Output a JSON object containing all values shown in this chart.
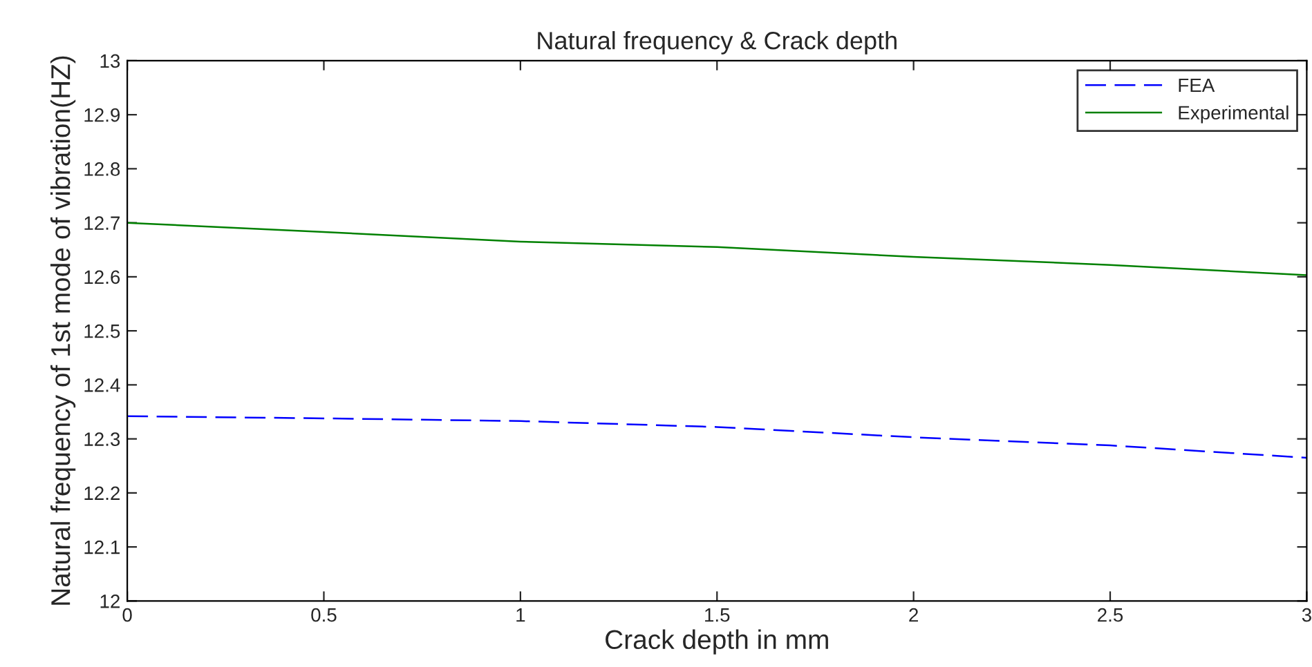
{
  "chart_data": {
    "type": "line",
    "title": "Natural frequency & Crack depth",
    "xlabel": "Crack depth in mm",
    "ylabel": "Natural frequency of 1st mode of vibration(HZ)",
    "x": [
      0,
      0.5,
      1,
      1.5,
      2,
      2.5,
      3
    ],
    "series": [
      {
        "name": "FEA",
        "color": "#0000ff",
        "line_style": "dashed",
        "values": [
          12.342,
          12.338,
          12.333,
          12.322,
          12.303,
          12.288,
          12.265
        ]
      },
      {
        "name": "Experimental",
        "color": "#008000",
        "line_style": "solid",
        "values": [
          12.7,
          12.683,
          12.665,
          12.655,
          12.637,
          12.622,
          12.603
        ]
      }
    ],
    "xlim": [
      0,
      3
    ],
    "xticks": [
      0,
      0.5,
      1,
      1.5,
      2,
      2.5,
      3
    ],
    "ylim": [
      12,
      13
    ],
    "yticks": [
      12,
      12.1,
      12.2,
      12.3,
      12.4,
      12.5,
      12.6,
      12.7,
      12.8,
      12.9,
      13
    ],
    "grid": false,
    "legend": "top right",
    "marker": "none"
  }
}
